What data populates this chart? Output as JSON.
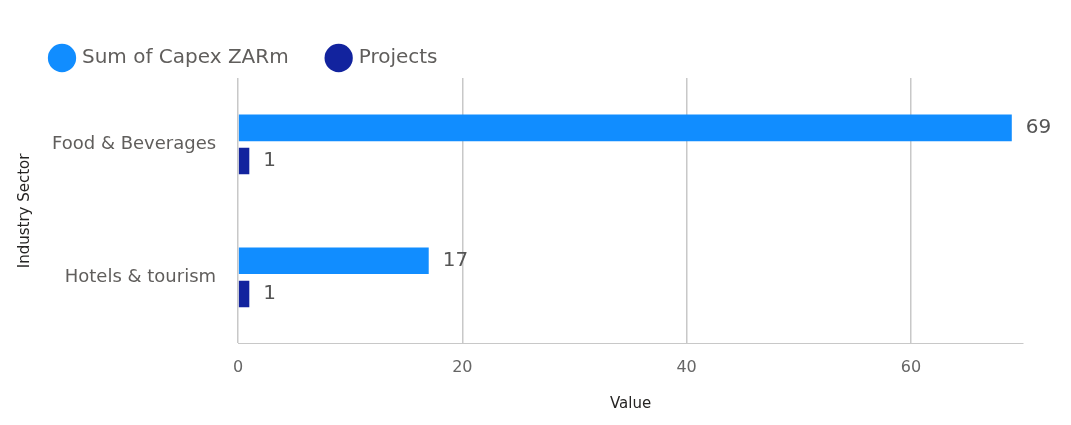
{
  "chart_data": {
    "type": "bar",
    "orientation": "horizontal",
    "categories": [
      "Food & Beverages",
      "Hotels & tourism"
    ],
    "series": [
      {
        "name": "Sum of Capex ZARm",
        "color": "#118dff",
        "values": [
          69,
          17
        ]
      },
      {
        "name": "Projects",
        "color": "#12239e",
        "values": [
          1,
          1
        ]
      }
    ],
    "xlim": [
      0,
      70
    ],
    "xticks": [
      0,
      20,
      40,
      60
    ],
    "xlabel": "Value",
    "ylabel": "Industry Sector",
    "grid": "x",
    "legend": "top left",
    "data_labels": true
  }
}
